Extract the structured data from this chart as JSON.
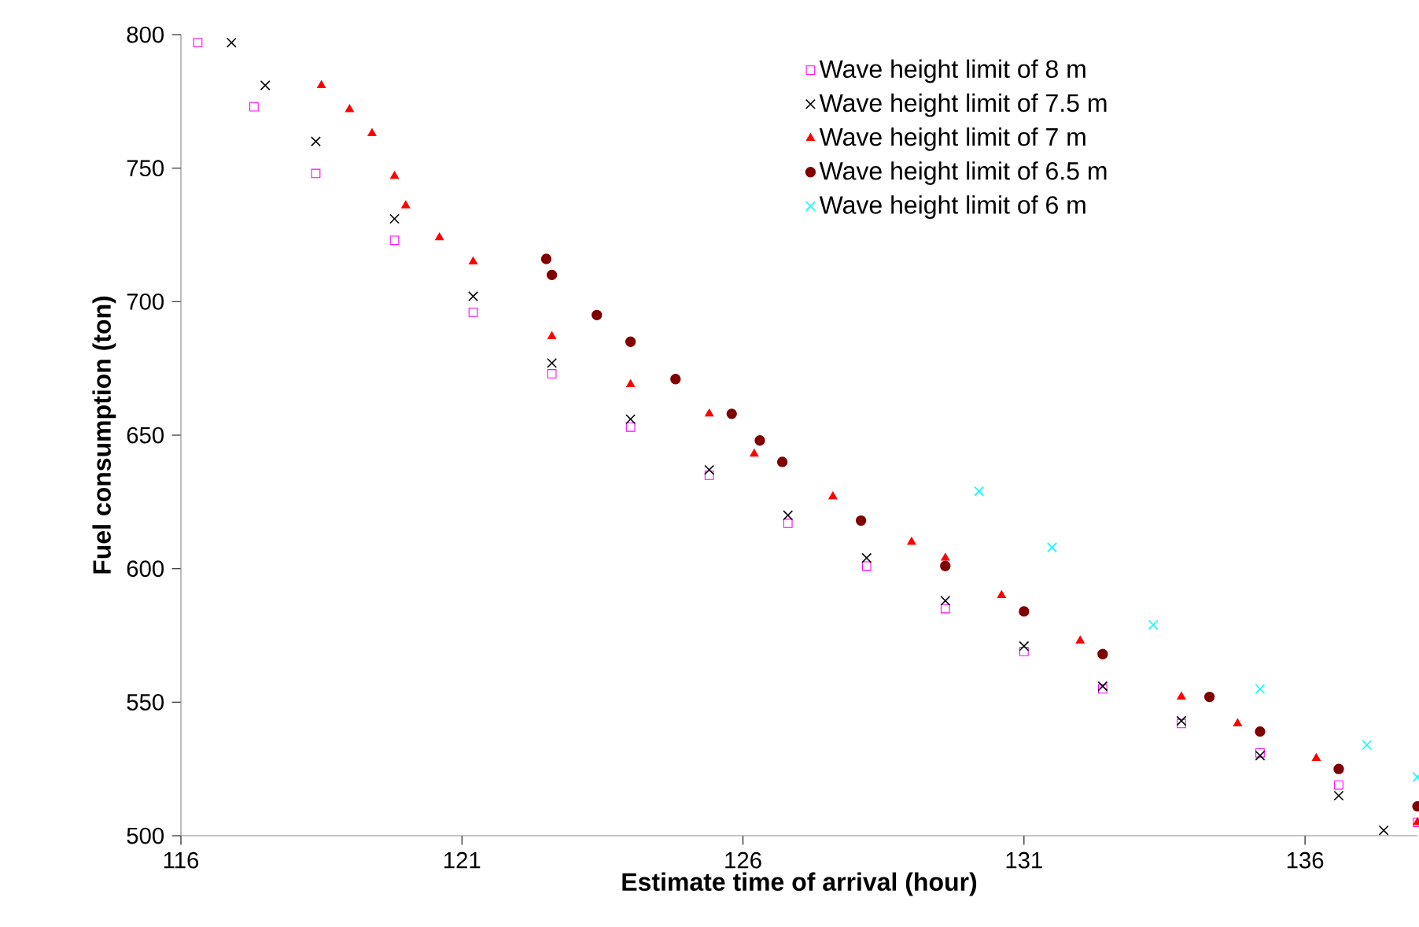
{
  "chart_data": {
    "type": "scatter",
    "xlabel": "Estimate time of arrival (hour)",
    "ylabel": "Fuel consumption (ton)",
    "xlim": [
      116,
      138
    ],
    "ylim": [
      500,
      800
    ],
    "xticks": [
      116,
      121,
      126,
      131,
      136
    ],
    "yticks": [
      500,
      550,
      600,
      650,
      700,
      750,
      800
    ],
    "grid": false,
    "legend": "top right",
    "series": [
      {
        "name": "Wave height limit of 8 m",
        "color": "#ff00ff",
        "marker": "square",
        "x": [
          116.3,
          117.3,
          118.4,
          119.8,
          121.2,
          122.6,
          124.0,
          125.4,
          126.8,
          128.2,
          129.6,
          131.0,
          132.4,
          133.8,
          135.2,
          136.6,
          138.0
        ],
        "values": [
          797,
          773,
          748,
          723,
          696,
          673,
          653,
          635,
          617,
          601,
          585,
          569,
          555,
          542,
          531,
          519,
          505
        ]
      },
      {
        "name": "Wave height limit of 7.5 m",
        "color": "#000000",
        "marker": "cross",
        "x": [
          116.9,
          117.5,
          118.4,
          119.8,
          121.2,
          122.6,
          124.0,
          125.4,
          126.8,
          128.2,
          129.6,
          131.0,
          132.4,
          133.8,
          135.2,
          136.6,
          137.4
        ],
        "values": [
          797,
          781,
          760,
          731,
          702,
          677,
          656,
          637,
          620,
          604,
          588,
          571,
          556,
          543,
          530,
          515,
          502
        ]
      },
      {
        "name": "Wave height limit of 7 m",
        "color": "#ff0000",
        "marker": "triangle",
        "x": [
          118.5,
          119.0,
          119.4,
          119.8,
          120.0,
          120.6,
          121.2,
          122.6,
          124.0,
          125.4,
          126.2,
          127.6,
          129.0,
          129.6,
          130.6,
          132.0,
          133.8,
          134.8,
          136.2,
          138.0
        ],
        "values": [
          781,
          772,
          763,
          747,
          736,
          724,
          715,
          687,
          669,
          658,
          643,
          627,
          610,
          604,
          590,
          573,
          552,
          542,
          529,
          505
        ]
      },
      {
        "name": "Wave height limit of 6.5 m",
        "color": "#800000",
        "marker": "circle",
        "x": [
          122.5,
          122.6,
          123.4,
          124.0,
          124.8,
          125.8,
          126.3,
          126.7,
          128.1,
          129.6,
          131.0,
          132.4,
          134.3,
          135.2,
          136.6,
          138.0
        ],
        "values": [
          716,
          710,
          695,
          685,
          671,
          658,
          648,
          640,
          618,
          601,
          584,
          568,
          552,
          539,
          525,
          511
        ]
      },
      {
        "name": "Wave height limit of 6 m",
        "color": "#00ffff",
        "marker": "cross",
        "x": [
          130.2,
          131.5,
          133.3,
          135.2,
          137.1,
          138.0
        ],
        "values": [
          629,
          608,
          579,
          555,
          534,
          522
        ]
      }
    ]
  }
}
